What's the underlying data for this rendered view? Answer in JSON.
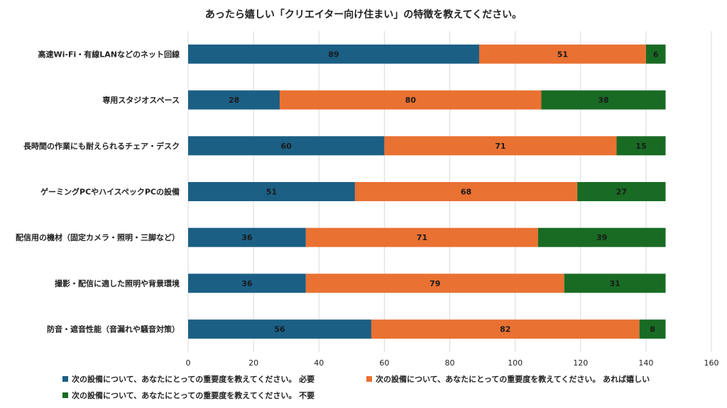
{
  "chart_data": {
    "type": "bar",
    "orientation": "horizontal",
    "stacked": true,
    "title": "あったら嬉しい「クリエイター向け住まい」の特徴を教えてください。",
    "categories": [
      "高速Wi-Fi・有線LANなどのネット回線",
      "専用スタジオスペース",
      "長時間の作業にも耐えられるチェア・デスク",
      "ゲーミングPCやハイスペックPCの設備",
      "配信用の機材（固定カメラ・照明・三脚など）",
      "撮影・配信に適した照明や背景環境",
      "防音・遮音性能（音漏れや騒音対策）"
    ],
    "series": [
      {
        "name": "次の設備について、あなたにとっての重要度を教えてください。 必要",
        "color": "#1b5f85",
        "label_color": "#1a1a1a",
        "values": [
          89,
          28,
          60,
          51,
          36,
          36,
          56
        ]
      },
      {
        "name": "次の設備について、あなたにとっての重要度を教えてください。 あれば嬉しい",
        "color": "#e97132",
        "label_color": "#1a1a1a",
        "values": [
          51,
          80,
          71,
          68,
          71,
          79,
          82
        ]
      },
      {
        "name": "次の設備について、あなたにとっての重要度を教えてください。 不要",
        "color": "#196b24",
        "label_color": "#1a1a1a",
        "values": [
          6,
          38,
          15,
          27,
          39,
          31,
          8
        ]
      }
    ],
    "xlim": [
      0,
      160
    ],
    "xticks": [
      0,
      20,
      40,
      60,
      80,
      100,
      120,
      140,
      160
    ],
    "grid": true,
    "legend_position": "bottom"
  }
}
